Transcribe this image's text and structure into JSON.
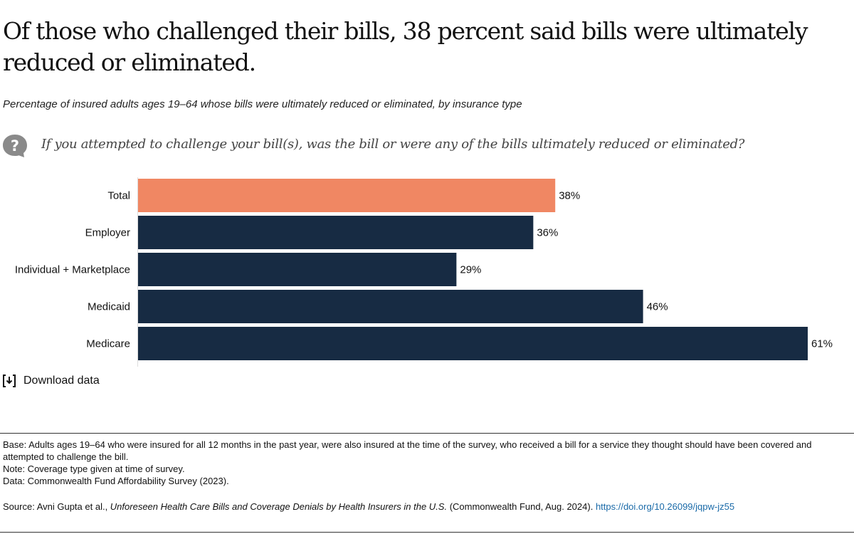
{
  "title": "Of those who challenged their bills, 38 percent said bills were ultimately reduced or eliminated.",
  "subtitle": "Percentage of insured adults ages 19–64 whose bills were ultimately reduced or eliminated, by insurance type",
  "question": "If you attempted to challenge your bill(s), was the bill or were any of the bills ultimately reduced or eliminated?",
  "download_label": "Download data",
  "notes": {
    "base": "Base: Adults ages 19–64 who were insured for all 12 months in the past year, were also insured at the time of the survey, who received a bill for a service they thought should have been covered and attempted to challenge the bill.",
    "note": "Note: Coverage type given at time of survey.",
    "data": "Data: Commonwealth Fund Affordability Survey (2023)."
  },
  "source": {
    "prefix": "Source: Avni Gupta et al., ",
    "title": "Unforeseen Health Care Bills and Coverage Denials by Health Insurers in the U.S.",
    "suffix": " (Commonwealth Fund, Aug. 2024). ",
    "link": "https://doi.org/10.26099/jqpw-jz55"
  },
  "chart_data": {
    "type": "bar",
    "orientation": "horizontal",
    "categories": [
      "Total",
      "Employer",
      "Individual + Marketplace",
      "Medicaid",
      "Medicare"
    ],
    "values": [
      38,
      36,
      29,
      46,
      61
    ],
    "value_labels": [
      "38%",
      "36%",
      "29%",
      "46%",
      "61%"
    ],
    "colors": [
      "#f08763",
      "#172b43",
      "#172b43",
      "#172b43",
      "#172b43"
    ],
    "grid": false
  }
}
